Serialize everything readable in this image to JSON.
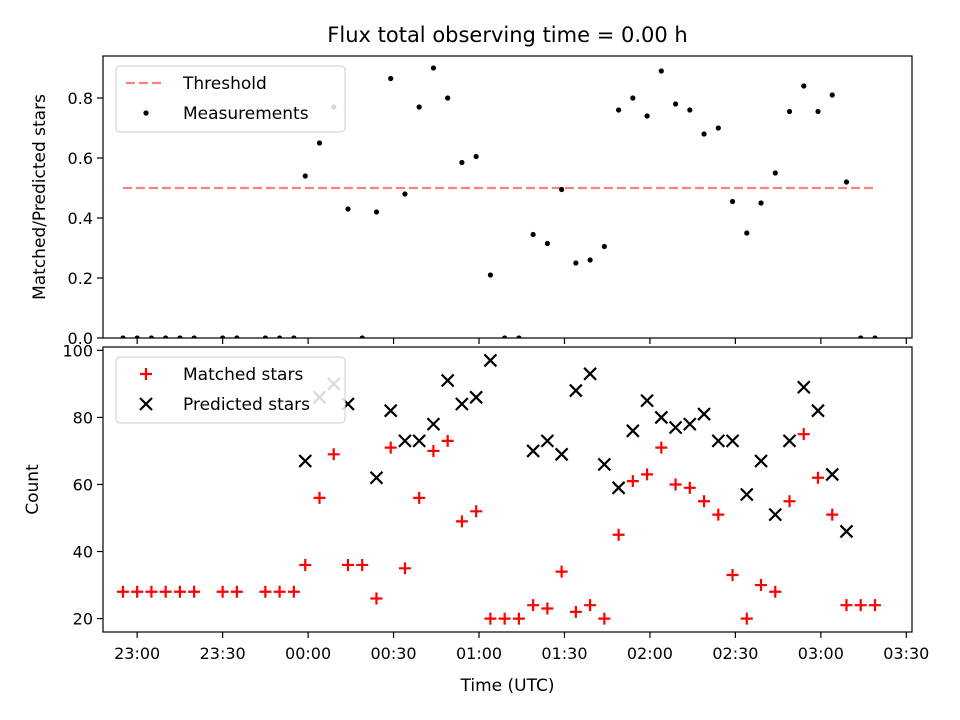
{
  "title": "Flux total observing time = 0.00 h",
  "chart_data": [
    {
      "type": "scatter",
      "ylabel": "Matched/Predicted stars",
      "xlabel": "",
      "xlim": [
        "22:48",
        "03:32"
      ],
      "ylim": [
        0,
        0.94
      ],
      "yticks": [
        0.0,
        0.2,
        0.4,
        0.6,
        0.8
      ],
      "ytick_labels": [
        "0.0",
        "0.2",
        "0.4",
        "0.6",
        "0.8"
      ],
      "legend_position": "upper-left",
      "grid": false,
      "threshold": {
        "name": "Threshold",
        "value": 0.5,
        "x_start": "22:55",
        "x_end": "03:19",
        "color": "#ff7f7f"
      },
      "series": [
        {
          "name": "Measurements",
          "color": "#000000",
          "marker": "dot",
          "points": [
            [
              "22:55",
              0.0
            ],
            [
              "23:00",
              0.0
            ],
            [
              "23:05",
              0.0
            ],
            [
              "23:10",
              0.0
            ],
            [
              "23:15",
              0.0
            ],
            [
              "23:20",
              0.0
            ],
            [
              "23:30",
              0.0
            ],
            [
              "23:35",
              0.0
            ],
            [
              "23:45",
              0.0
            ],
            [
              "23:50",
              0.0
            ],
            [
              "23:55",
              0.0
            ],
            [
              "23:59",
              0.54
            ],
            [
              "00:04",
              0.65
            ],
            [
              "00:09",
              0.77
            ],
            [
              "00:14",
              0.43
            ],
            [
              "00:19",
              0.0
            ],
            [
              "00:24",
              0.42
            ],
            [
              "00:29",
              0.865
            ],
            [
              "00:34",
              0.48
            ],
            [
              "00:39",
              0.77
            ],
            [
              "00:44",
              0.9
            ],
            [
              "00:49",
              0.8
            ],
            [
              "00:54",
              0.585
            ],
            [
              "00:59",
              0.605
            ],
            [
              "01:04",
              0.21
            ],
            [
              "01:09",
              0.0
            ],
            [
              "01:14",
              0.0
            ],
            [
              "01:19",
              0.345
            ],
            [
              "01:24",
              0.315
            ],
            [
              "01:29",
              0.495
            ],
            [
              "01:34",
              0.25
            ],
            [
              "01:39",
              0.26
            ],
            [
              "01:44",
              0.305
            ],
            [
              "01:49",
              0.76
            ],
            [
              "01:54",
              0.8
            ],
            [
              "01:59",
              0.74
            ],
            [
              "02:04",
              0.89
            ],
            [
              "02:09",
              0.78
            ],
            [
              "02:14",
              0.76
            ],
            [
              "02:19",
              0.68
            ],
            [
              "02:24",
              0.7
            ],
            [
              "02:29",
              0.455
            ],
            [
              "02:34",
              0.35
            ],
            [
              "02:39",
              0.45
            ],
            [
              "02:44",
              0.55
            ],
            [
              "02:49",
              0.755
            ],
            [
              "02:54",
              0.84
            ],
            [
              "02:59",
              0.755
            ],
            [
              "03:04",
              0.81
            ],
            [
              "03:09",
              0.52
            ],
            [
              "03:14",
              0.0
            ],
            [
              "03:19",
              0.0
            ]
          ]
        }
      ]
    },
    {
      "type": "scatter",
      "ylabel": "Count",
      "xlabel": "Time (UTC)",
      "xlim": [
        "22:48",
        "03:32"
      ],
      "ylim": [
        16,
        101
      ],
      "yticks": [
        20,
        40,
        60,
        80,
        100
      ],
      "ytick_labels": [
        "20",
        "40",
        "60",
        "80",
        "100"
      ],
      "xticks": [
        "23:00",
        "23:30",
        "00:00",
        "00:30",
        "01:00",
        "01:30",
        "02:00",
        "02:30",
        "03:00",
        "03:30"
      ],
      "legend_position": "upper-left",
      "grid": false,
      "series": [
        {
          "name": "Matched stars",
          "color": "#ff0000",
          "marker": "plus",
          "points": [
            [
              "22:55",
              28
            ],
            [
              "23:00",
              28
            ],
            [
              "23:05",
              28
            ],
            [
              "23:10",
              28
            ],
            [
              "23:15",
              28
            ],
            [
              "23:20",
              28
            ],
            [
              "23:30",
              28
            ],
            [
              "23:35",
              28
            ],
            [
              "23:45",
              28
            ],
            [
              "23:50",
              28
            ],
            [
              "23:55",
              28
            ],
            [
              "23:59",
              36
            ],
            [
              "00:04",
              56
            ],
            [
              "00:09",
              69
            ],
            [
              "00:14",
              36
            ],
            [
              "00:19",
              36
            ],
            [
              "00:24",
              26
            ],
            [
              "00:29",
              71
            ],
            [
              "00:34",
              35
            ],
            [
              "00:39",
              56
            ],
            [
              "00:44",
              70
            ],
            [
              "00:49",
              73
            ],
            [
              "00:54",
              49
            ],
            [
              "00:59",
              52
            ],
            [
              "01:04",
              20
            ],
            [
              "01:09",
              20
            ],
            [
              "01:14",
              20
            ],
            [
              "01:19",
              24
            ],
            [
              "01:24",
              23
            ],
            [
              "01:29",
              34
            ],
            [
              "01:34",
              22
            ],
            [
              "01:39",
              24
            ],
            [
              "01:44",
              20
            ],
            [
              "01:49",
              45
            ],
            [
              "01:54",
              61
            ],
            [
              "01:59",
              63
            ],
            [
              "02:04",
              71
            ],
            [
              "02:09",
              60
            ],
            [
              "02:14",
              59
            ],
            [
              "02:19",
              55
            ],
            [
              "02:24",
              51
            ],
            [
              "02:29",
              33
            ],
            [
              "02:34",
              20
            ],
            [
              "02:39",
              30
            ],
            [
              "02:44",
              28
            ],
            [
              "02:49",
              55
            ],
            [
              "02:54",
              75
            ],
            [
              "02:59",
              62
            ],
            [
              "03:04",
              51
            ],
            [
              "03:09",
              24
            ],
            [
              "03:14",
              24
            ],
            [
              "03:19",
              24
            ]
          ]
        },
        {
          "name": "Predicted stars",
          "color": "#000000",
          "marker": "x",
          "points": [
            [
              "23:59",
              67
            ],
            [
              "00:04",
              86
            ],
            [
              "00:09",
              90
            ],
            [
              "00:14",
              84
            ],
            [
              "00:24",
              62
            ],
            [
              "00:29",
              82
            ],
            [
              "00:34",
              73
            ],
            [
              "00:39",
              73
            ],
            [
              "00:44",
              78
            ],
            [
              "00:49",
              91
            ],
            [
              "00:54",
              84
            ],
            [
              "00:59",
              86
            ],
            [
              "01:04",
              97
            ],
            [
              "01:19",
              70
            ],
            [
              "01:24",
              73
            ],
            [
              "01:29",
              69
            ],
            [
              "01:34",
              88
            ],
            [
              "01:39",
              93
            ],
            [
              "01:44",
              66
            ],
            [
              "01:49",
              59
            ],
            [
              "01:54",
              76
            ],
            [
              "01:59",
              85
            ],
            [
              "02:04",
              80
            ],
            [
              "02:09",
              77
            ],
            [
              "02:14",
              78
            ],
            [
              "02:19",
              81
            ],
            [
              "02:24",
              73
            ],
            [
              "02:29",
              73
            ],
            [
              "02:34",
              57
            ],
            [
              "02:39",
              67
            ],
            [
              "02:44",
              51
            ],
            [
              "02:49",
              73
            ],
            [
              "02:54",
              89
            ],
            [
              "02:59",
              82
            ],
            [
              "03:04",
              63
            ],
            [
              "03:09",
              46
            ]
          ]
        }
      ]
    }
  ]
}
